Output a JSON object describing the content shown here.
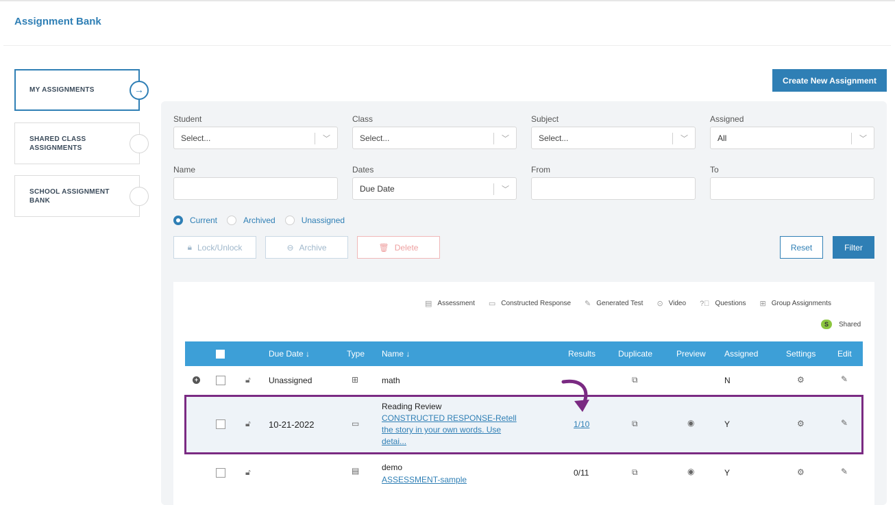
{
  "page": {
    "title": "Assignment Bank"
  },
  "sidebar": {
    "items": [
      {
        "label": "MY ASSIGNMENTS",
        "active": true
      },
      {
        "label": "SHARED CLASS ASSIGNMENTS",
        "active": false
      },
      {
        "label": "SCHOOL ASSIGNMENT BANK",
        "active": false
      }
    ],
    "active_arrow": "→"
  },
  "create_button": "Create New Assignment",
  "filters": {
    "student": {
      "label": "Student",
      "value": "Select..."
    },
    "class": {
      "label": "Class",
      "value": "Select..."
    },
    "subject": {
      "label": "Subject",
      "value": "Select..."
    },
    "assigned": {
      "label": "Assigned",
      "value": "All"
    },
    "name": {
      "label": "Name",
      "value": ""
    },
    "dates": {
      "label": "Dates",
      "value": "Due Date"
    },
    "from": {
      "label": "From",
      "value": ""
    },
    "to": {
      "label": "To",
      "value": ""
    }
  },
  "status_radios": [
    {
      "label": "Current",
      "selected": true
    },
    {
      "label": "Archived",
      "selected": false
    },
    {
      "label": "Unassigned",
      "selected": false
    }
  ],
  "actions": {
    "lock": "Lock/Unlock",
    "archive": "Archive",
    "delete": "Delete",
    "reset": "Reset",
    "filter": "Filter"
  },
  "legend": {
    "assessment": "Assessment",
    "constructed": "Constructed Response",
    "generated": "Generated Test",
    "video": "Video",
    "questions": "Questions",
    "group": "Group Assignments",
    "shared_badge": "S",
    "shared": "Shared"
  },
  "table": {
    "headers": {
      "due_date": "Due Date ↓",
      "type": "Type",
      "name": "Name ↓",
      "results": "Results",
      "duplicate": "Duplicate",
      "preview": "Preview",
      "assigned": "Assigned",
      "settings": "Settings",
      "edit": "Edit"
    },
    "rows": [
      {
        "due": "Unassigned",
        "name": "math",
        "link": "",
        "results": "",
        "assigned": "N"
      },
      {
        "due": "10-21-2022",
        "name": "Reading Review",
        "link_lines": [
          "CONSTRUCTED RESPONSE-Retell",
          "the story in your own words. Use",
          "detai..."
        ],
        "results": "1/10",
        "assigned": "Y"
      },
      {
        "due": "",
        "name": "demo",
        "link": "ASSESSMENT-sample",
        "results": "0/11",
        "assigned": "Y"
      }
    ]
  },
  "colors": {
    "primary": "#2f7fb5",
    "header": "#3d9fd7",
    "highlight": "#7a2a82",
    "shared_badge": "#8cc63f"
  }
}
